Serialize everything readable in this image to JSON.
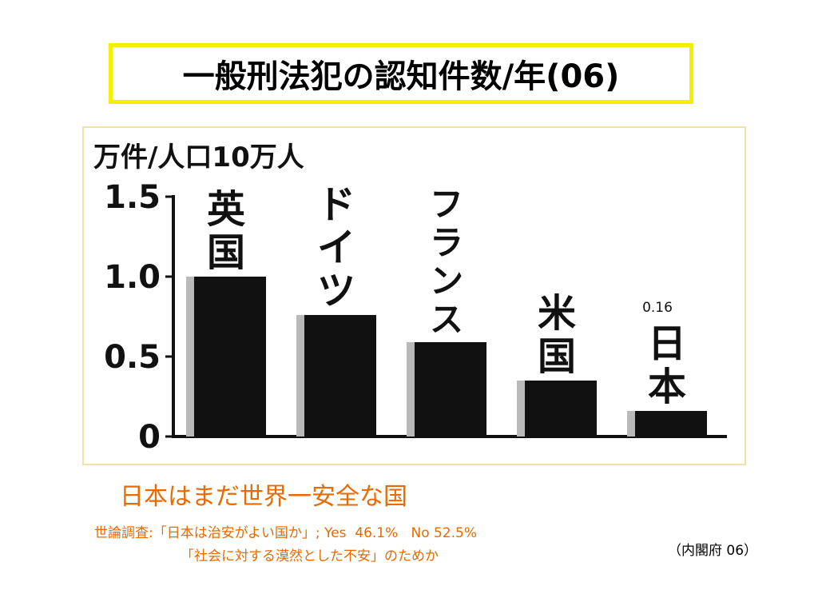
{
  "slide": {
    "title": "一般刑法犯の認知件数/年(06)",
    "headline": "日本はまだ世界一安全な国",
    "survey": "世論調査:「日本は治安がよい国か」; Yes  46.1%   No 52.5%",
    "reason": "「社会に対する漠然とした不安」のためか",
    "source": "（内閣府 06）"
  },
  "colors": {
    "title_border": "#f5f000",
    "frame_border": "#f3e1a8",
    "accent_text": "#e86a00",
    "bar": "#111111"
  },
  "chart_data": {
    "type": "bar",
    "title": "",
    "ylabel": "万件/人口10万人",
    "xlabel": "",
    "ylim": [
      0,
      1.5
    ],
    "yticks": [
      "0",
      "0.5",
      "1.0",
      "1.5"
    ],
    "categories": [
      "英国",
      "ドイツ",
      "フランス",
      "米国",
      "日本"
    ],
    "values": [
      1.0,
      0.76,
      0.59,
      0.35,
      0.16
    ],
    "data_labels": [
      "",
      "",
      "",
      "",
      "0.16"
    ],
    "grid": false,
    "legend": "none"
  }
}
